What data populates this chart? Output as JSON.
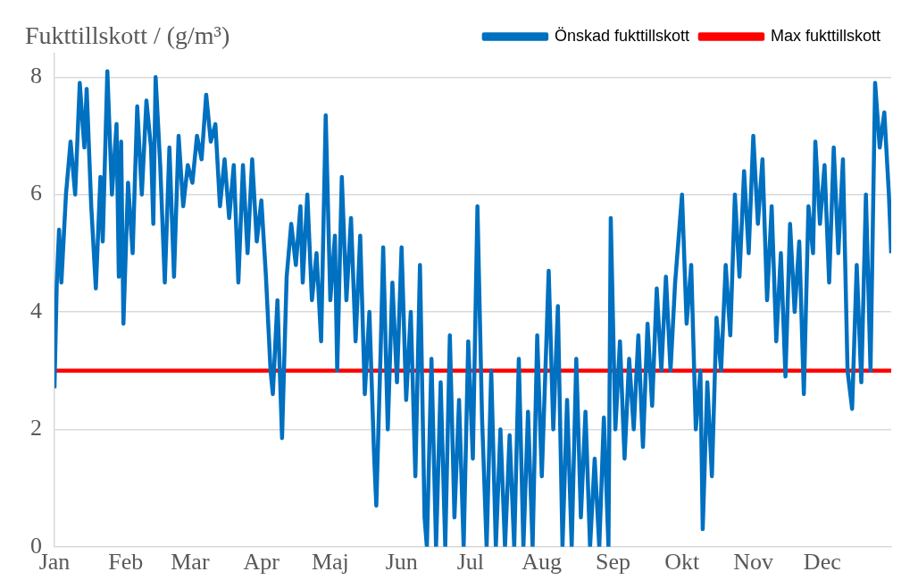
{
  "chart_data": {
    "type": "line",
    "ylabel": "Fukttillskott / (g/m³)",
    "xlim": [
      "--01-01",
      "--12-31"
    ],
    "xticks": [
      {
        "value": "--01-01",
        "label": "Jan"
      },
      {
        "value": "--02-01",
        "label": "Feb"
      },
      {
        "value": "--03-01",
        "label": "Mar"
      },
      {
        "value": "--04-01",
        "label": "Apr"
      },
      {
        "value": "--05-01",
        "label": "Maj"
      },
      {
        "value": "--06-01",
        "label": "Jun"
      },
      {
        "value": "--07-01",
        "label": "Jul"
      },
      {
        "value": "--08-01",
        "label": "Aug"
      },
      {
        "value": "--09-01",
        "label": "Sep"
      },
      {
        "value": "--10-01",
        "label": "Okt"
      },
      {
        "value": "--11-01",
        "label": "Nov"
      },
      {
        "value": "--12-01",
        "label": "Dec"
      }
    ],
    "ylim": [
      0,
      8.4
    ],
    "yticks": [
      0,
      2,
      4,
      6,
      8
    ],
    "grid": "y",
    "legend": "top right",
    "marker": "none",
    "line_style": "solid",
    "series": [
      {
        "name": "Önskad fukttillskott",
        "color": "#0070c0",
        "x": [
          "--01-01",
          "--01-02",
          "--01-03",
          "--01-04",
          "--01-06",
          "--01-08",
          "--01-10",
          "--01-12",
          "--01-14",
          "--01-15",
          "--01-17",
          "--01-19",
          "--01-21",
          "--01-22",
          "--01-24",
          "--01-26",
          "--01-28",
          "--01-29",
          "--01-30",
          "--01-31",
          "--02-02",
          "--02-04",
          "--02-06",
          "--02-08",
          "--02-10",
          "--02-12",
          "--02-13",
          "--02-14",
          "--02-16",
          "--02-18",
          "--02-20",
          "--02-22",
          "--02-24",
          "--02-26",
          "--02-28",
          "--03-02",
          "--03-04",
          "--03-06",
          "--03-08",
          "--03-10",
          "--03-12",
          "--03-14",
          "--03-16",
          "--03-18",
          "--03-20",
          "--03-22",
          "--03-24",
          "--03-26",
          "--03-28",
          "--03-30",
          "--04-01",
          "--04-03",
          "--04-05",
          "--04-06",
          "--04-08",
          "--04-10",
          "--04-12",
          "--04-14",
          "--04-16",
          "--04-18",
          "--04-19",
          "--04-21",
          "--04-23",
          "--04-25",
          "--04-27",
          "--04-29",
          "--05-01",
          "--05-03",
          "--05-04",
          "--05-06",
          "--05-08",
          "--05-10",
          "--05-12",
          "--05-14",
          "--05-16",
          "--05-18",
          "--05-20",
          "--05-21",
          "--05-23",
          "--05-24",
          "--05-26",
          "--05-28",
          "--05-30",
          "--06-01",
          "--06-03",
          "--06-05",
          "--06-07",
          "--06-09",
          "--06-11",
          "--06-12",
          "--06-14",
          "--06-16",
          "--06-18",
          "--06-20",
          "--06-22",
          "--06-24",
          "--06-26",
          "--06-28",
          "--06-30",
          "--07-02",
          "--07-04",
          "--07-06",
          "--07-08",
          "--07-10",
          "--07-12",
          "--07-14",
          "--07-16",
          "--07-18",
          "--07-20",
          "--07-22",
          "--07-24",
          "--07-26",
          "--07-28",
          "--07-30",
          "--08-01",
          "--08-03",
          "--08-04",
          "--08-06",
          "--08-08",
          "--08-10",
          "--08-12",
          "--08-14",
          "--08-16",
          "--08-18",
          "--08-20",
          "--08-22",
          "--08-24",
          "--08-26",
          "--08-28",
          "--08-30",
          "--08-31",
          "--09-02",
          "--09-04",
          "--09-06",
          "--09-08",
          "--09-10",
          "--09-12",
          "--09-14",
          "--09-16",
          "--09-18",
          "--09-20",
          "--09-22",
          "--09-24",
          "--09-26",
          "--09-28",
          "--10-01",
          "--10-03",
          "--10-05",
          "--10-07",
          "--10-09",
          "--10-10",
          "--10-12",
          "--10-14",
          "--10-16",
          "--10-18",
          "--10-20",
          "--10-22",
          "--10-24",
          "--10-26",
          "--10-28",
          "--10-30",
          "--11-01",
          "--11-03",
          "--11-05",
          "--11-07",
          "--11-09",
          "--11-11",
          "--11-13",
          "--11-15",
          "--11-17",
          "--11-19",
          "--11-21",
          "--11-23",
          "--11-25",
          "--11-27",
          "--11-28",
          "--11-30",
          "--12-02",
          "--12-04",
          "--12-06",
          "--12-08",
          "--12-10",
          "--12-12",
          "--12-14",
          "--12-16",
          "--12-18",
          "--12-20",
          "--12-22",
          "--12-24",
          "--12-26",
          "--12-28",
          "--12-30",
          "--12-31"
        ],
        "values": [
          2.7,
          4.5,
          5.4,
          4.5,
          6.0,
          6.9,
          6.0,
          7.9,
          6.8,
          7.8,
          5.8,
          4.4,
          6.3,
          5.2,
          8.1,
          6.0,
          7.2,
          4.6,
          6.9,
          3.8,
          6.2,
          5.0,
          7.5,
          6.0,
          7.6,
          6.8,
          5.5,
          8.0,
          6.5,
          4.5,
          6.8,
          4.6,
          7.0,
          5.8,
          6.5,
          6.2,
          7.0,
          6.6,
          7.7,
          6.9,
          7.2,
          5.8,
          6.6,
          5.6,
          6.5,
          4.5,
          6.5,
          5.0,
          6.6,
          5.2,
          5.9,
          4.6,
          3.0,
          2.6,
          4.2,
          1.85,
          4.6,
          5.5,
          4.8,
          5.8,
          4.5,
          6.0,
          4.2,
          5.0,
          3.5,
          7.35,
          4.2,
          5.3,
          3.0,
          6.3,
          4.2,
          5.6,
          3.5,
          5.3,
          2.6,
          4.0,
          1.6,
          0.7,
          3.5,
          5.1,
          2.0,
          4.5,
          2.8,
          5.1,
          2.5,
          4.0,
          1.2,
          4.8,
          0.5,
          0,
          3.2,
          0,
          2.8,
          0,
          3.6,
          0.5,
          2.5,
          0,
          3.5,
          1.5,
          5.8,
          2.2,
          0,
          3.0,
          0,
          2.0,
          0,
          1.9,
          0,
          3.2,
          0,
          2.3,
          0,
          3.6,
          1.2,
          3.5,
          4.7,
          2.0,
          4.1,
          0,
          2.5,
          0,
          3.2,
          0.5,
          2.3,
          0,
          1.5,
          0,
          2.2,
          0,
          5.6,
          2.0,
          3.5,
          1.5,
          3.2,
          2.0,
          3.6,
          1.7,
          3.8,
          2.4,
          4.4,
          3.0,
          4.6,
          3.0,
          4.5,
          6.0,
          3.8,
          4.8,
          2.0,
          3.0,
          0.3,
          2.8,
          1.2,
          3.9,
          3.0,
          4.8,
          3.6,
          6.0,
          4.6,
          6.4,
          5.0,
          7.0,
          5.5,
          6.6,
          4.2,
          5.8,
          3.5,
          5.0,
          2.9,
          5.5,
          4.0,
          5.2,
          2.6,
          5.8,
          5.0,
          6.9,
          5.5,
          6.5,
          4.5,
          6.8,
          5.0,
          6.6,
          3.0,
          2.35,
          4.8,
          2.8,
          6.0,
          3.0,
          7.9,
          6.8,
          7.4,
          6.0,
          5.0
        ]
      },
      {
        "name": "Max fukttillskott",
        "color": "#ff0000",
        "x": [
          "--01-01",
          "--12-31"
        ],
        "values": [
          3,
          3
        ]
      }
    ]
  }
}
